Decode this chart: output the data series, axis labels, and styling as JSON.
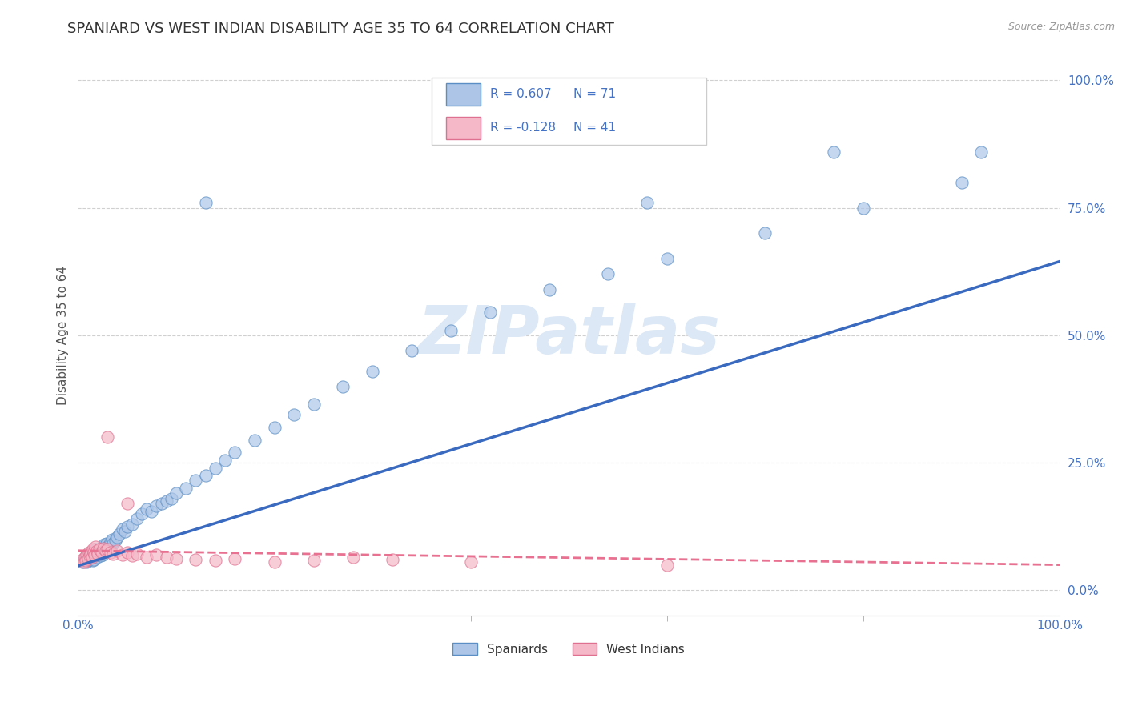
{
  "title": "SPANIARD VS WEST INDIAN DISABILITY AGE 35 TO 64 CORRELATION CHART",
  "source_text": "Source: ZipAtlas.com",
  "ylabel": "Disability Age 35 to 64",
  "y_tick_labels": [
    "0.0%",
    "25.0%",
    "50.0%",
    "75.0%",
    "100.0%"
  ],
  "y_tick_values": [
    0.0,
    0.25,
    0.5,
    0.75,
    1.0
  ],
  "xlim": [
    0.0,
    1.0
  ],
  "ylim": [
    -0.05,
    1.05
  ],
  "spaniard_color": "#adc6e8",
  "west_indian_color": "#f5b8c8",
  "spaniard_edge_color": "#5b8ec4",
  "west_indian_edge_color": "#e07090",
  "spaniard_line_color": "#3a6abf",
  "west_indian_line_color": "#e87090",
  "legend_R1": "R = 0.607",
  "legend_N1": "N = 71",
  "legend_R2": "R = -0.128",
  "legend_N2": "N = 41",
  "title_color": "#333333",
  "source_color": "#999999",
  "axis_label_color": "#555555",
  "tick_color": "#4472c4",
  "grid_color": "#d0d0d0",
  "background_color": "#ffffff",
  "watermark": "ZIPatlas",
  "bottom_legend_labels": [
    "Spaniards",
    "West Indians"
  ],
  "spaniard_x": [
    0.005,
    0.007,
    0.008,
    0.009,
    0.01,
    0.01,
    0.012,
    0.013,
    0.014,
    0.015,
    0.015,
    0.016,
    0.016,
    0.017,
    0.018,
    0.018,
    0.019,
    0.02,
    0.02,
    0.021,
    0.022,
    0.023,
    0.024,
    0.025,
    0.025,
    0.026,
    0.027,
    0.028,
    0.029,
    0.03,
    0.032,
    0.033,
    0.035,
    0.036,
    0.038,
    0.04,
    0.042,
    0.045,
    0.048,
    0.05,
    0.055,
    0.06,
    0.065,
    0.07,
    0.075,
    0.08,
    0.085,
    0.09,
    0.095,
    0.1,
    0.11,
    0.12,
    0.13,
    0.14,
    0.15,
    0.16,
    0.18,
    0.2,
    0.22,
    0.24,
    0.27,
    0.3,
    0.34,
    0.38,
    0.42,
    0.48,
    0.54,
    0.6,
    0.7,
    0.8,
    0.9
  ],
  "spaniard_y": [
    0.055,
    0.06,
    0.065,
    0.055,
    0.058,
    0.07,
    0.062,
    0.068,
    0.072,
    0.058,
    0.065,
    0.06,
    0.075,
    0.068,
    0.072,
    0.08,
    0.065,
    0.07,
    0.078,
    0.072,
    0.075,
    0.068,
    0.08,
    0.07,
    0.085,
    0.075,
    0.09,
    0.08,
    0.092,
    0.085,
    0.088,
    0.095,
    0.1,
    0.092,
    0.098,
    0.105,
    0.11,
    0.12,
    0.115,
    0.125,
    0.13,
    0.14,
    0.15,
    0.16,
    0.155,
    0.165,
    0.17,
    0.175,
    0.18,
    0.19,
    0.2,
    0.215,
    0.225,
    0.24,
    0.255,
    0.27,
    0.295,
    0.32,
    0.345,
    0.365,
    0.4,
    0.43,
    0.47,
    0.51,
    0.545,
    0.59,
    0.62,
    0.65,
    0.7,
    0.75,
    0.8
  ],
  "west_indian_x": [
    0.005,
    0.006,
    0.007,
    0.008,
    0.009,
    0.01,
    0.011,
    0.012,
    0.013,
    0.014,
    0.015,
    0.016,
    0.017,
    0.018,
    0.019,
    0.02,
    0.022,
    0.024,
    0.026,
    0.028,
    0.03,
    0.033,
    0.036,
    0.04,
    0.045,
    0.05,
    0.055,
    0.06,
    0.07,
    0.08,
    0.09,
    0.1,
    0.12,
    0.14,
    0.16,
    0.2,
    0.24,
    0.28,
    0.32,
    0.4,
    0.6
  ],
  "west_indian_y": [
    0.06,
    0.055,
    0.065,
    0.058,
    0.07,
    0.062,
    0.075,
    0.068,
    0.072,
    0.065,
    0.08,
    0.075,
    0.07,
    0.085,
    0.078,
    0.072,
    0.08,
    0.075,
    0.082,
    0.078,
    0.08,
    0.075,
    0.072,
    0.078,
    0.07,
    0.075,
    0.068,
    0.072,
    0.065,
    0.07,
    0.065,
    0.062,
    0.06,
    0.058,
    0.062,
    0.055,
    0.058,
    0.065,
    0.06,
    0.055,
    0.05
  ],
  "blue_line_x0": 0.0,
  "blue_line_y0": 0.048,
  "blue_line_x1": 1.0,
  "blue_line_y1": 0.645,
  "pink_line_x0": 0.0,
  "pink_line_y0": 0.078,
  "pink_line_x1": 1.0,
  "pink_line_y1": 0.05
}
